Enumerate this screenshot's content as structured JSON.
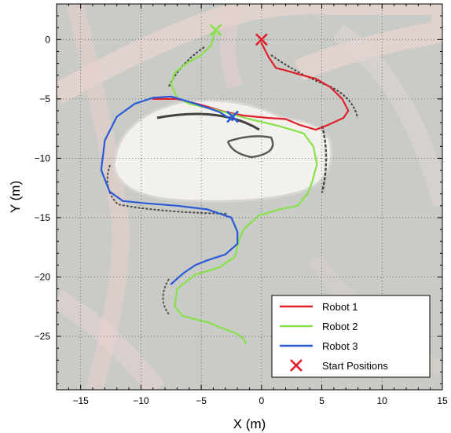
{
  "chart_data": {
    "type": "line",
    "xlabel": "X (m)",
    "ylabel": "Y (m)",
    "xlim": [
      -17,
      15
    ],
    "ylim": [
      -29.5,
      3
    ],
    "xticks": [
      -15,
      -10,
      -5,
      0,
      5,
      10,
      15
    ],
    "yticks": [
      0,
      -5,
      -10,
      -15,
      -20,
      -25
    ],
    "grid": true,
    "legend_position": "bottom-right",
    "series": [
      {
        "name": "Robot 1",
        "color": "#e0202a",
        "x": [
          0,
          0.6,
          1.2,
          2,
          3,
          4.5,
          5.7,
          6.7,
          7.2,
          6.8,
          5.5,
          4.5,
          3.2,
          2,
          0.5,
          -1.5,
          -3,
          -5,
          -7,
          -9
        ],
        "y": [
          -0.3,
          -1.5,
          -2.4,
          -2.6,
          -2.9,
          -3.3,
          -4,
          -5,
          -6,
          -6.6,
          -7.2,
          -7.6,
          -7.2,
          -6.7,
          -6.6,
          -6.4,
          -6.1,
          -5.5,
          -5,
          -5
        ]
      },
      {
        "name": "Robot 2",
        "color": "#88e04a",
        "x": [
          -3.8,
          -4.2,
          -5,
          -6.2,
          -7.2,
          -7.5,
          -7,
          -6,
          -3.5,
          -1,
          1.5,
          3.5,
          4.3,
          4.6,
          4.2,
          3.8,
          3,
          1.5,
          -0.2,
          -1.5,
          -1.9,
          -2.2,
          -3.5,
          -5.5,
          -7,
          -7.2,
          -6.5,
          -4.5,
          -3,
          -2,
          -1.5,
          -1.3
        ],
        "y": [
          0.8,
          -0.5,
          -1.3,
          -2,
          -2.8,
          -3.8,
          -4.9,
          -5.4,
          -6,
          -6.7,
          -7.3,
          -7.9,
          -9,
          -10.5,
          -12,
          -13,
          -14,
          -14.3,
          -14.8,
          -16,
          -17,
          -18.3,
          -19.2,
          -19.8,
          -21,
          -22.5,
          -23.3,
          -23.8,
          -24.4,
          -24.8,
          -25.2,
          -25.6
        ]
      },
      {
        "name": "Robot 3",
        "color": "#2a5ad8",
        "x": [
          -2.4,
          -3.5,
          -5.5,
          -7.5,
          -9,
          -10.5,
          -12,
          -13,
          -13.3,
          -12.6,
          -11.5,
          -9.5,
          -7,
          -4.5,
          -2.5,
          -2,
          -2,
          -3,
          -4.5,
          -5.5,
          -6.5,
          -7.5
        ],
        "y": [
          -6.8,
          -6.1,
          -5.4,
          -4.8,
          -4.9,
          -5.4,
          -6.5,
          -8.5,
          -11,
          -12.8,
          -13.6,
          -13.8,
          -14,
          -14.3,
          -15,
          -16.2,
          -17.2,
          -18.1,
          -18.6,
          -19,
          -19.7,
          -20.6
        ]
      }
    ],
    "start_positions": {
      "name": "Start Positions",
      "color": "#e0202a",
      "points": [
        {
          "x": 0,
          "y": 0
        },
        {
          "x": -3.8,
          "y": 0.8
        },
        {
          "x": -2.4,
          "y": -6.5
        }
      ],
      "marker_colors": [
        "#e0202a",
        "#88e04a",
        "#2a5ad8"
      ]
    }
  }
}
